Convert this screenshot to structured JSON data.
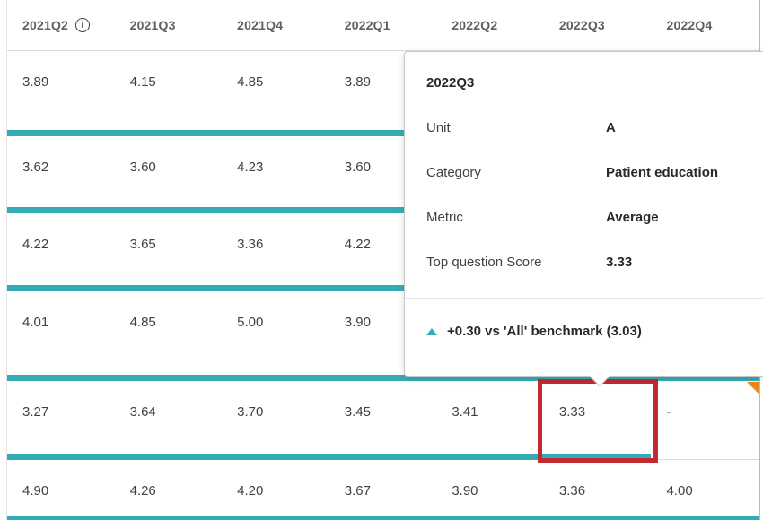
{
  "colors": {
    "teal": "#35acb5",
    "red": "#c02a30",
    "orange": "#e8871a"
  },
  "icons": {
    "info_glyph": "i"
  },
  "table": {
    "columns": [
      "2021Q2",
      "2021Q3",
      "2021Q4",
      "2022Q1",
      "2022Q2",
      "2022Q3",
      "2022Q4"
    ],
    "rows": [
      {
        "values": [
          "3.89",
          "4.15",
          "4.85",
          "3.89",
          "",
          "",
          ""
        ]
      },
      {
        "values": [
          "3.62",
          "3.60",
          "4.23",
          "3.60",
          "",
          "",
          ""
        ]
      },
      {
        "values": [
          "4.22",
          "3.65",
          "3.36",
          "4.22",
          "",
          "",
          ""
        ]
      },
      {
        "values": [
          "4.01",
          "4.85",
          "5.00",
          "3.90",
          "",
          "",
          ""
        ]
      },
      {
        "values": [
          "3.27",
          "3.64",
          "3.70",
          "3.45",
          "3.41",
          "3.33",
          "-"
        ]
      },
      {
        "values": [
          "4.90",
          "4.26",
          "4.20",
          "3.67",
          "3.90",
          "3.36",
          "4.00"
        ]
      }
    ]
  },
  "tooltip": {
    "title": "2022Q3",
    "fields": [
      {
        "label": "Unit",
        "value": "A"
      },
      {
        "label": "Category",
        "value": "Patient education"
      },
      {
        "label": "Metric",
        "value": "Average"
      },
      {
        "label": "Top question Score",
        "value": "3.33"
      }
    ],
    "benchmark_text": "+0.30 vs 'All' benchmark (3.03)",
    "benchmark_direction": "up"
  },
  "highlight": {
    "column": "2022Q3",
    "row_index": 4,
    "value": "3.33"
  }
}
